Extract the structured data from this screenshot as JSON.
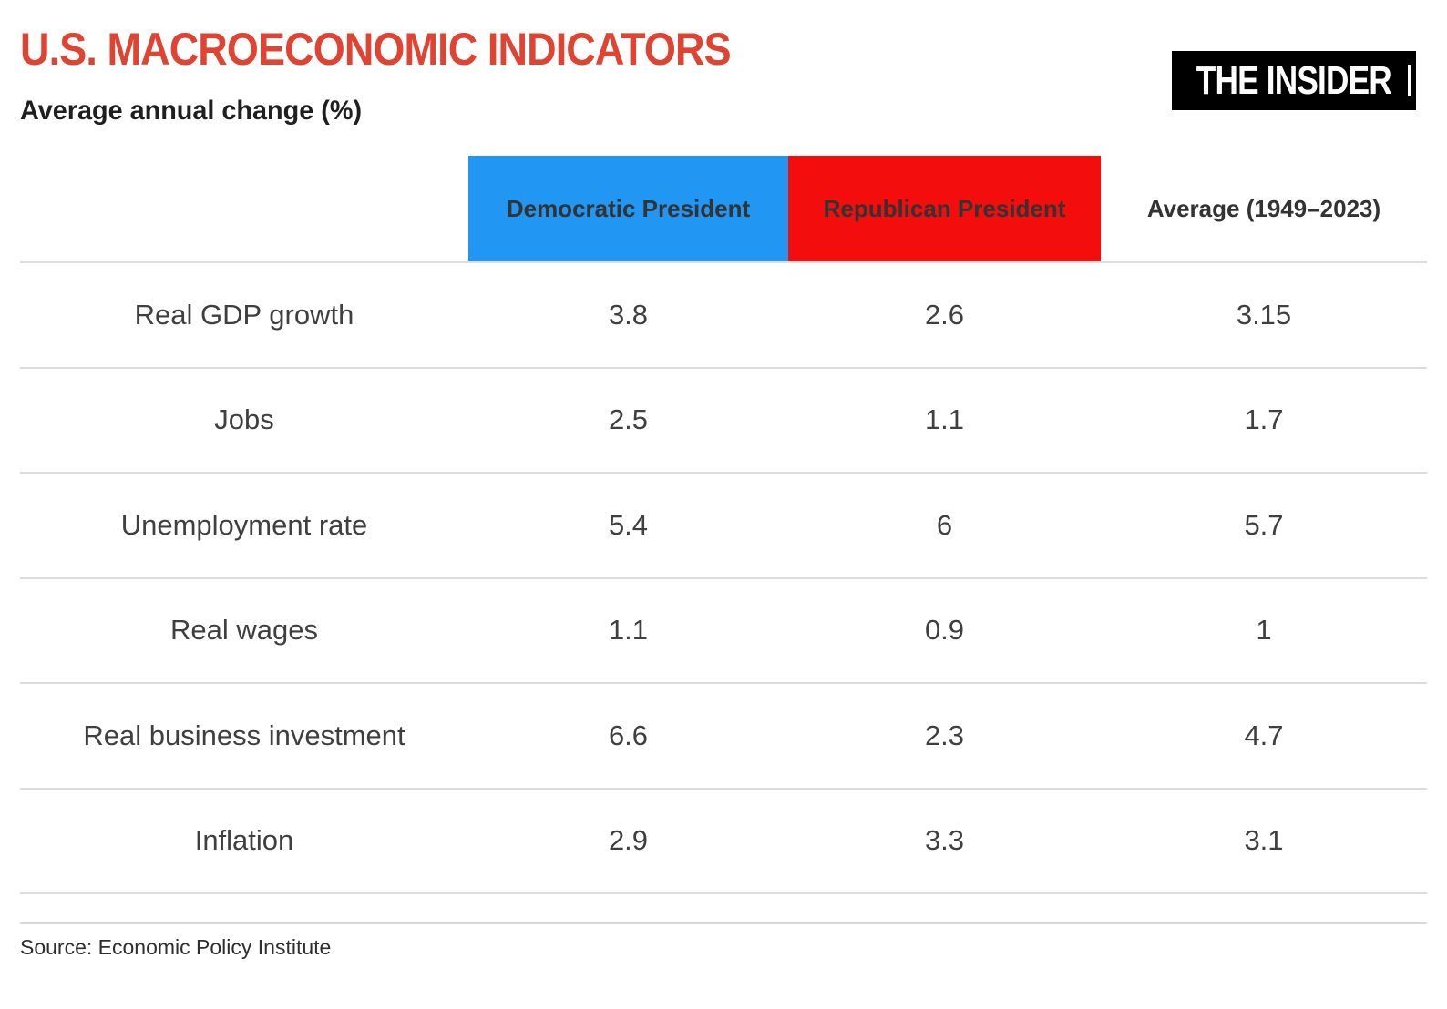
{
  "header": {
    "title": "U.S. MACROECONOMIC INDICATORS",
    "subtitle": "Average annual change (%)",
    "logo_text": "THE INSIDER"
  },
  "colors": {
    "title_red": "#df4433",
    "democratic_blue": "#2196f3",
    "republican_red": "#f40d0d",
    "divider_gray": "#dcdcdc",
    "logo_bg": "#000000"
  },
  "table": {
    "columns": [
      {
        "label": "Democratic President",
        "color": "#2196f3"
      },
      {
        "label": "Republican President",
        "color": "#f40d0d"
      },
      {
        "label": "Average (1949–2023)",
        "color": "transparent"
      }
    ],
    "rows": [
      {
        "label": "Real GDP growth",
        "values": [
          "3.8",
          "2.6",
          "3.15"
        ]
      },
      {
        "label": "Jobs",
        "values": [
          "2.5",
          "1.1",
          "1.7"
        ]
      },
      {
        "label": "Unemployment rate",
        "values": [
          "5.4",
          "6",
          "5.7"
        ]
      },
      {
        "label": "Real wages",
        "values": [
          "1.1",
          "0.9",
          "1"
        ]
      },
      {
        "label": "Real business investment",
        "values": [
          "6.6",
          "2.3",
          "4.7"
        ]
      },
      {
        "label": "Inflation",
        "values": [
          "2.9",
          "3.3",
          "3.1"
        ]
      }
    ]
  },
  "footer": {
    "source": "Source: Economic Policy Institute"
  },
  "chart_data": {
    "type": "table",
    "title": "U.S. MACROECONOMIC INDICATORS",
    "subtitle": "Average annual change (%)",
    "categories": [
      "Real GDP growth",
      "Jobs",
      "Unemployment rate",
      "Real wages",
      "Real business investment",
      "Inflation"
    ],
    "series": [
      {
        "name": "Democratic President",
        "color": "#2196f3",
        "values": [
          3.8,
          2.5,
          5.4,
          1.1,
          6.6,
          2.9
        ]
      },
      {
        "name": "Republican President",
        "color": "#f40d0d",
        "values": [
          2.6,
          1.1,
          6.0,
          0.9,
          2.3,
          3.3
        ]
      },
      {
        "name": "Average (1949–2023)",
        "color": null,
        "values": [
          3.15,
          1.7,
          5.7,
          1.0,
          4.7,
          3.1
        ]
      }
    ],
    "source": "Source: Economic Policy Institute"
  }
}
